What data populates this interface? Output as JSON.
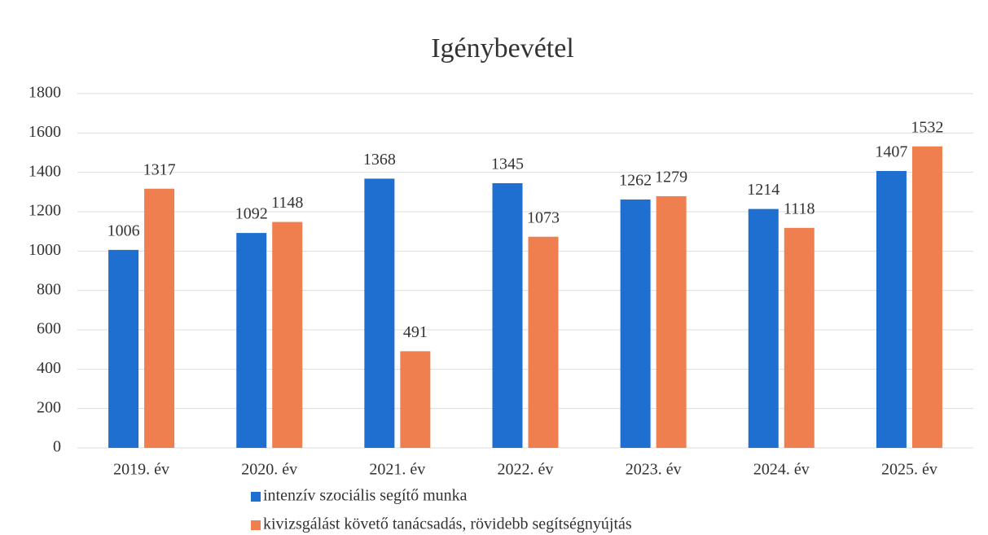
{
  "chart_data": {
    "type": "bar",
    "title": "Igénybevétel",
    "categories": [
      "2019. év",
      "2020. év",
      "2021. év",
      "2022. év",
      "2023. év",
      "2024. év",
      "2025. év"
    ],
    "series": [
      {
        "name": "intenzív szociális segítő munka",
        "color": "#1f6fd0",
        "values": [
          1006,
          1092,
          1368,
          1345,
          1262,
          1214,
          1407
        ]
      },
      {
        "name": "kivizsgálást követő tanácsadás, rövidebb segítségnyújtás",
        "color": "#f07f50",
        "values": [
          1317,
          1148,
          491,
          1073,
          1279,
          1118,
          1532
        ]
      }
    ],
    "ylim": [
      0,
      1800
    ],
    "yticks": [
      0,
      200,
      400,
      600,
      800,
      1000,
      1200,
      1400,
      1600,
      1800
    ],
    "grid": true,
    "legend": "bottom"
  }
}
